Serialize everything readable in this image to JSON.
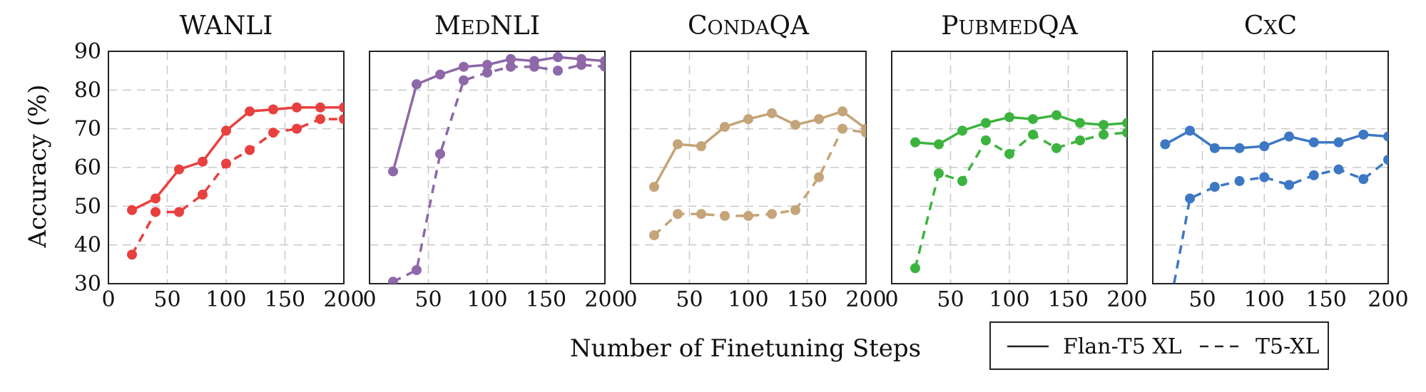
{
  "figure": {
    "ylabel": "Accuracy (%)",
    "xlabel": "Number of Finetuning Steps",
    "legend": {
      "solid": "Flan-T5 XL",
      "dashed": "T5-XL"
    }
  },
  "panels": [
    {
      "title": "WANLI",
      "color": "#e8403f",
      "xticks": [
        "0",
        "50",
        "100",
        "150",
        "200"
      ]
    },
    {
      "title": "MedNLI",
      "color": "#8e68a8",
      "xticks": [
        "0",
        "50",
        "100",
        "150",
        "200"
      ]
    },
    {
      "title": "CondaQA",
      "color": "#c4a478",
      "xticks": [
        "0",
        "50",
        "100",
        "150",
        "200"
      ]
    },
    {
      "title": "PubmedQA",
      "color": "#3db33f",
      "xticks": [
        "0",
        "50",
        "100",
        "150",
        "200"
      ]
    },
    {
      "title": "CxC",
      "color": "#3d78c4",
      "xticks": [
        "50",
        "100",
        "150",
        "200"
      ]
    }
  ],
  "yticks": [
    "30",
    "40",
    "50",
    "60",
    "70",
    "80",
    "90"
  ],
  "chart_data": [
    {
      "type": "line",
      "title": "WANLI",
      "xlabel": "Number of Finetuning Steps",
      "ylabel": "Accuracy (%)",
      "xlim": [
        0,
        200
      ],
      "ylim": [
        30,
        90
      ],
      "series": [
        {
          "name": "Flan-T5 XL",
          "style": "solid",
          "x": [
            20,
            40,
            60,
            80,
            100,
            120,
            140,
            160,
            180,
            200
          ],
          "y": [
            49,
            52,
            59.5,
            61.5,
            69.5,
            74.5,
            75,
            75.5,
            75.5,
            75.5
          ]
        },
        {
          "name": "T5-XL",
          "style": "dashed",
          "x": [
            20,
            40,
            60,
            80,
            100,
            120,
            140,
            160,
            180,
            200
          ],
          "y": [
            37.5,
            48.5,
            48.5,
            53,
            61,
            64.5,
            69,
            70,
            72.5,
            72.5
          ]
        }
      ]
    },
    {
      "type": "line",
      "title": "MedNLI",
      "xlabel": "Number of Finetuning Steps",
      "ylabel": "Accuracy (%)",
      "xlim": [
        0,
        200
      ],
      "ylim": [
        30,
        90
      ],
      "series": [
        {
          "name": "Flan-T5 XL",
          "style": "solid",
          "x": [
            20,
            40,
            60,
            80,
            100,
            120,
            140,
            160,
            180,
            200
          ],
          "y": [
            59,
            81.5,
            84,
            86,
            86.5,
            88,
            87.5,
            88.5,
            88,
            87.5
          ]
        },
        {
          "name": "T5-XL",
          "style": "dashed",
          "x": [
            20,
            40,
            60,
            80,
            100,
            120,
            140,
            160,
            180,
            200
          ],
          "y": [
            30.5,
            33.5,
            63.5,
            82.5,
            84.5,
            86,
            86,
            85,
            86.5,
            86
          ]
        }
      ]
    },
    {
      "type": "line",
      "title": "CondaQA",
      "xlabel": "Number of Finetuning Steps",
      "ylabel": "Accuracy (%)",
      "xlim": [
        0,
        200
      ],
      "ylim": [
        30,
        90
      ],
      "series": [
        {
          "name": "Flan-T5 XL",
          "style": "solid",
          "x": [
            20,
            40,
            60,
            80,
            100,
            120,
            140,
            160,
            180,
            200
          ],
          "y": [
            55,
            66,
            65.5,
            70.5,
            72.5,
            74,
            71,
            72.5,
            74.5,
            70
          ]
        },
        {
          "name": "T5-XL",
          "style": "dashed",
          "x": [
            20,
            40,
            60,
            80,
            100,
            120,
            140,
            160,
            180,
            200
          ],
          "y": [
            42.5,
            48,
            48,
            47.5,
            47.5,
            48,
            49,
            57.5,
            70,
            69
          ]
        }
      ]
    },
    {
      "type": "line",
      "title": "PubmedQA",
      "xlabel": "Number of Finetuning Steps",
      "ylabel": "Accuracy (%)",
      "xlim": [
        0,
        200
      ],
      "ylim": [
        30,
        90
      ],
      "series": [
        {
          "name": "Flan-T5 XL",
          "style": "solid",
          "x": [
            20,
            40,
            60,
            80,
            100,
            120,
            140,
            160,
            180,
            200
          ],
          "y": [
            66.5,
            66,
            69.5,
            71.5,
            73,
            72.5,
            73.5,
            71.5,
            71,
            71.5
          ]
        },
        {
          "name": "T5-XL",
          "style": "dashed",
          "x": [
            20,
            40,
            60,
            80,
            100,
            120,
            140,
            160,
            180,
            200
          ],
          "y": [
            34,
            58.5,
            56.5,
            67,
            63.5,
            68.5,
            65,
            67,
            68.5,
            69
          ]
        }
      ]
    },
    {
      "type": "line",
      "title": "CxC",
      "xlabel": "Number of Finetuning Steps",
      "ylabel": "Accuracy (%)",
      "xlim": [
        10,
        200
      ],
      "ylim": [
        30,
        90
      ],
      "series": [
        {
          "name": "Flan-T5 XL",
          "style": "solid",
          "x": [
            20,
            40,
            60,
            80,
            100,
            120,
            140,
            160,
            180,
            200
          ],
          "y": [
            66,
            69.5,
            65,
            65,
            65.5,
            68,
            66.5,
            66.5,
            68.5,
            68
          ]
        },
        {
          "name": "T5-XL",
          "style": "dashed",
          "x": [
            40,
            60,
            80,
            100,
            120,
            140,
            160,
            180,
            200
          ],
          "y": [
            52,
            55,
            56.5,
            57.5,
            55.5,
            58,
            59.5,
            57,
            62
          ]
        }
      ]
    }
  ]
}
